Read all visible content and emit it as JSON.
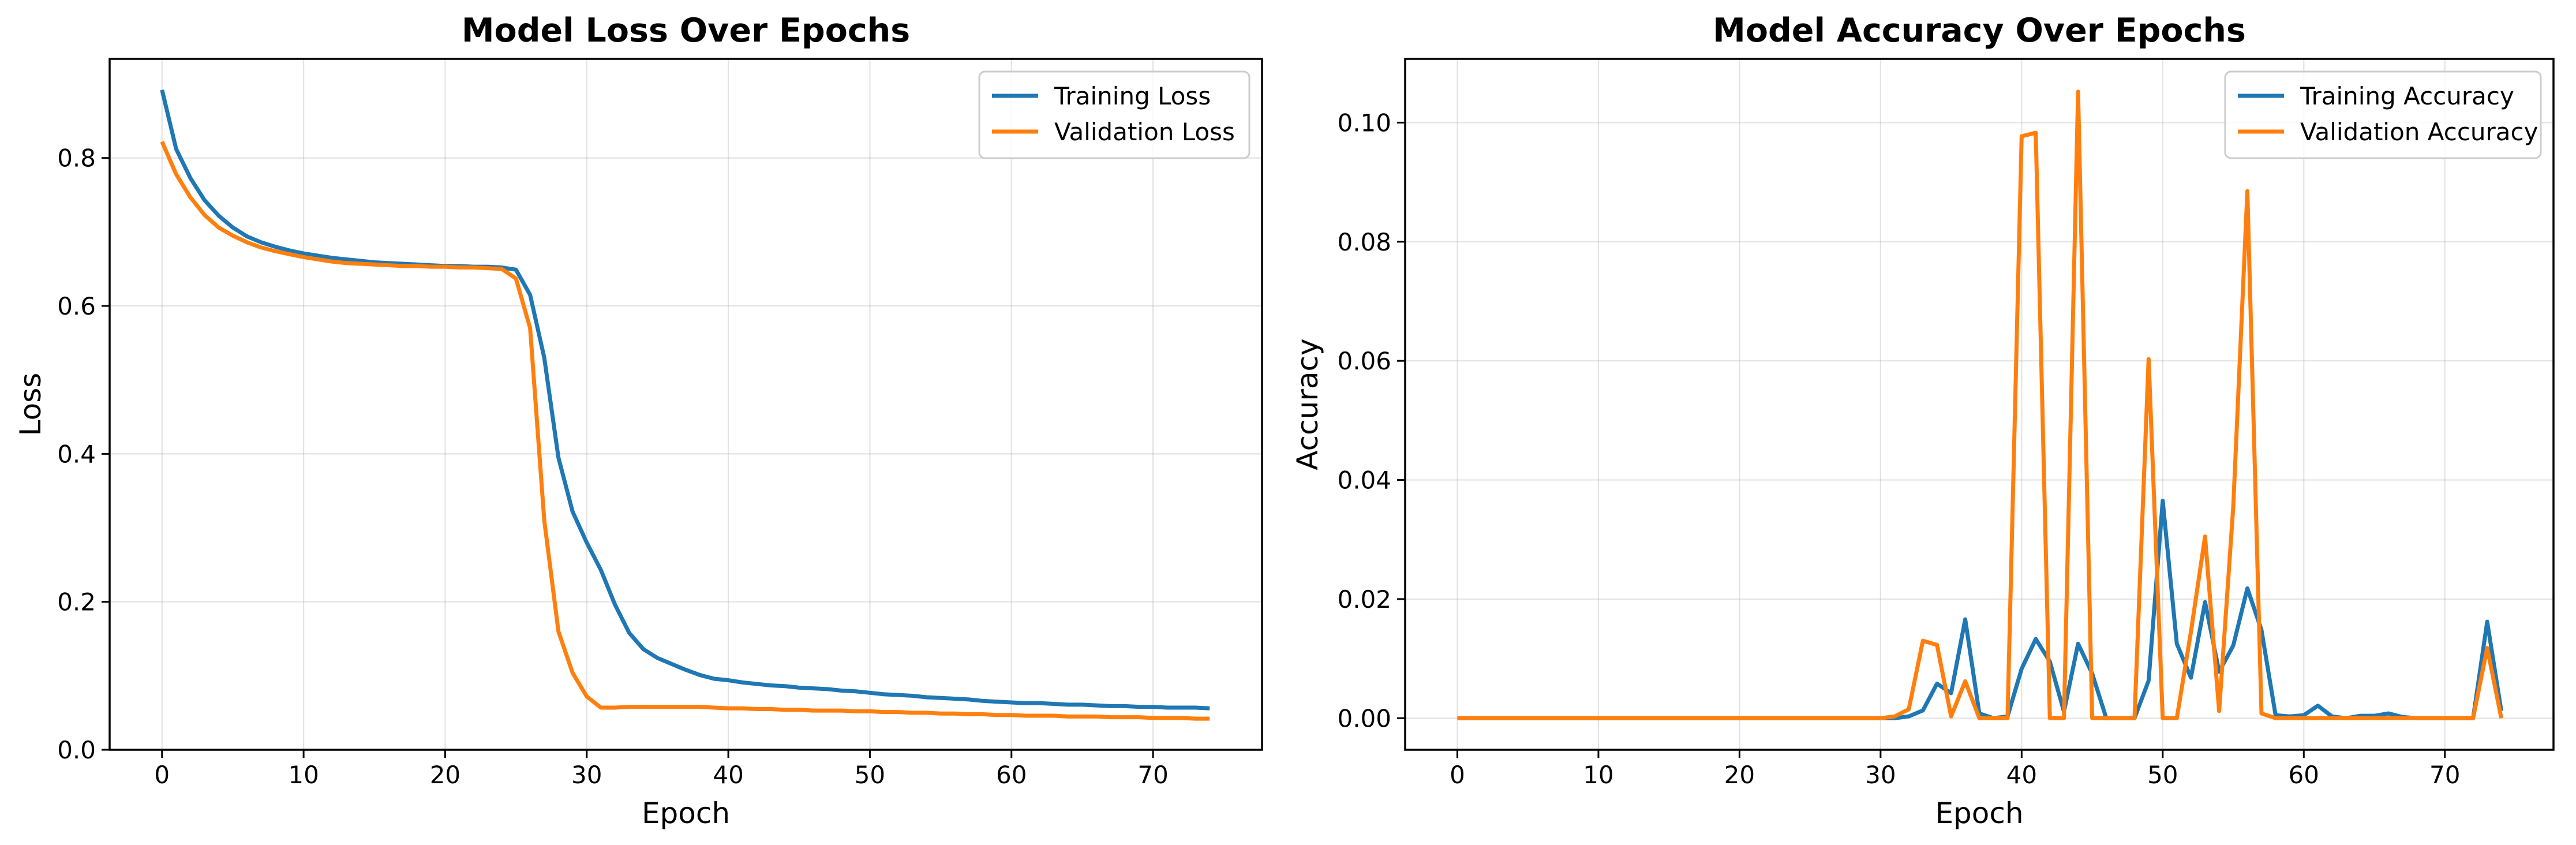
{
  "chart_data": [
    {
      "type": "line",
      "title": "Model Loss Over Epochs",
      "xlabel": "Epoch",
      "ylabel": "Loss",
      "xlim": [
        -3.7,
        77.7
      ],
      "ylim": [
        0,
        0.934
      ],
      "xticks": [
        0,
        10,
        20,
        30,
        40,
        50,
        60,
        70
      ],
      "yticks": [
        0.0,
        0.2,
        0.4,
        0.6,
        0.8
      ],
      "ytick_decimals": 1,
      "grid": true,
      "legend_position": "top-right",
      "series": [
        {
          "name": "Training Loss",
          "color": "#1f77b4",
          "x": [
            0,
            1,
            2,
            3,
            4,
            5,
            6,
            7,
            8,
            9,
            10,
            11,
            12,
            13,
            14,
            15,
            16,
            17,
            18,
            19,
            20,
            21,
            22,
            23,
            24,
            25,
            26,
            27,
            28,
            29,
            30,
            31,
            32,
            33,
            34,
            35,
            36,
            37,
            38,
            39,
            40,
            41,
            42,
            43,
            44,
            45,
            46,
            47,
            48,
            49,
            50,
            51,
            52,
            53,
            54,
            55,
            56,
            57,
            58,
            59,
            60,
            61,
            62,
            63,
            64,
            65,
            66,
            67,
            68,
            69,
            70,
            71,
            72,
            73,
            74
          ],
          "y": [
            0.892,
            0.812,
            0.773,
            0.743,
            0.722,
            0.706,
            0.694,
            0.686,
            0.68,
            0.675,
            0.671,
            0.668,
            0.665,
            0.663,
            0.661,
            0.659,
            0.658,
            0.657,
            0.656,
            0.655,
            0.654,
            0.654,
            0.653,
            0.653,
            0.652,
            0.649,
            0.615,
            0.53,
            0.395,
            0.322,
            0.28,
            0.243,
            0.196,
            0.158,
            0.136,
            0.124,
            0.116,
            0.108,
            0.101,
            0.096,
            0.094,
            0.091,
            0.089,
            0.087,
            0.086,
            0.084,
            0.083,
            0.082,
            0.08,
            0.079,
            0.077,
            0.075,
            0.074,
            0.073,
            0.071,
            0.07,
            0.069,
            0.068,
            0.066,
            0.065,
            0.064,
            0.063,
            0.063,
            0.062,
            0.061,
            0.061,
            0.06,
            0.059,
            0.059,
            0.058,
            0.058,
            0.057,
            0.057,
            0.057,
            0.056
          ]
        },
        {
          "name": "Validation Loss",
          "color": "#ff7f0e",
          "x": [
            0,
            1,
            2,
            3,
            4,
            5,
            6,
            7,
            8,
            9,
            10,
            11,
            12,
            13,
            14,
            15,
            16,
            17,
            18,
            19,
            20,
            21,
            22,
            23,
            24,
            25,
            26,
            27,
            28,
            29,
            30,
            31,
            32,
            33,
            34,
            35,
            36,
            37,
            38,
            39,
            40,
            41,
            42,
            43,
            44,
            45,
            46,
            47,
            48,
            49,
            50,
            51,
            52,
            53,
            54,
            55,
            56,
            57,
            58,
            59,
            60,
            61,
            62,
            63,
            64,
            65,
            66,
            67,
            68,
            69,
            70,
            71,
            72,
            73,
            74
          ],
          "y": [
            0.822,
            0.778,
            0.747,
            0.723,
            0.706,
            0.695,
            0.686,
            0.679,
            0.674,
            0.67,
            0.666,
            0.663,
            0.66,
            0.658,
            0.657,
            0.656,
            0.655,
            0.654,
            0.654,
            0.653,
            0.653,
            0.652,
            0.652,
            0.651,
            0.65,
            0.637,
            0.57,
            0.31,
            0.16,
            0.104,
            0.072,
            0.057,
            0.057,
            0.058,
            0.058,
            0.058,
            0.058,
            0.058,
            0.058,
            0.057,
            0.056,
            0.056,
            0.055,
            0.055,
            0.054,
            0.054,
            0.053,
            0.053,
            0.053,
            0.052,
            0.052,
            0.051,
            0.051,
            0.05,
            0.05,
            0.049,
            0.049,
            0.048,
            0.048,
            0.047,
            0.047,
            0.046,
            0.046,
            0.046,
            0.045,
            0.045,
            0.045,
            0.044,
            0.044,
            0.044,
            0.043,
            0.043,
            0.043,
            0.042,
            0.042
          ]
        }
      ]
    },
    {
      "type": "line",
      "title": "Model Accuracy Over Epochs",
      "xlabel": "Epoch",
      "ylabel": "Accuracy",
      "xlim": [
        -3.7,
        77.7
      ],
      "ylim": [
        -0.0053,
        0.1107
      ],
      "xticks": [
        0,
        10,
        20,
        30,
        40,
        50,
        60,
        70
      ],
      "yticks": [
        0.0,
        0.02,
        0.04,
        0.06,
        0.08,
        0.1
      ],
      "ytick_decimals": 2,
      "grid": true,
      "legend_position": "top-right",
      "series": [
        {
          "name": "Training Accuracy",
          "color": "#1f77b4",
          "x": [
            0,
            1,
            2,
            3,
            4,
            5,
            6,
            7,
            8,
            9,
            10,
            11,
            12,
            13,
            14,
            15,
            16,
            17,
            18,
            19,
            20,
            21,
            22,
            23,
            24,
            25,
            26,
            27,
            28,
            29,
            30,
            31,
            32,
            33,
            34,
            35,
            36,
            37,
            38,
            39,
            40,
            41,
            42,
            43,
            44,
            45,
            46,
            47,
            48,
            49,
            50,
            51,
            52,
            53,
            54,
            55,
            56,
            57,
            58,
            59,
            60,
            61,
            62,
            63,
            64,
            65,
            66,
            67,
            68,
            69,
            70,
            71,
            72,
            73,
            74
          ],
          "y": [
            0,
            0,
            0,
            0,
            0,
            0,
            0,
            0,
            0,
            0,
            0,
            0,
            0,
            0,
            0,
            0,
            0,
            0,
            0,
            0,
            0,
            0,
            0,
            0,
            0,
            0,
            0,
            0,
            0,
            0,
            0,
            0,
            0.0003,
            0.0013,
            0.0058,
            0.0042,
            0.0166,
            0.0008,
            0,
            0.0003,
            0.0083,
            0.0133,
            0.0095,
            0.0011,
            0.0125,
            0.0075,
            0,
            0,
            0,
            0.0063,
            0.0365,
            0.0125,
            0.0068,
            0.0195,
            0.0078,
            0.0122,
            0.0218,
            0.0148,
            0.0005,
            0.0003,
            0.0005,
            0.0021,
            0.0003,
            0,
            0.0004,
            0.0004,
            0.0008,
            0.0002,
            0,
            0,
            0,
            0,
            0,
            0.0162,
            0.0012
          ]
        },
        {
          "name": "Validation Accuracy",
          "color": "#ff7f0e",
          "x": [
            0,
            1,
            2,
            3,
            4,
            5,
            6,
            7,
            8,
            9,
            10,
            11,
            12,
            13,
            14,
            15,
            16,
            17,
            18,
            19,
            20,
            21,
            22,
            23,
            24,
            25,
            26,
            27,
            28,
            29,
            30,
            31,
            32,
            33,
            34,
            35,
            36,
            37,
            38,
            39,
            40,
            41,
            42,
            43,
            44,
            45,
            46,
            47,
            48,
            49,
            50,
            51,
            52,
            53,
            54,
            55,
            56,
            57,
            58,
            59,
            60,
            61,
            62,
            63,
            64,
            65,
            66,
            67,
            68,
            69,
            70,
            71,
            72,
            73,
            74
          ],
          "y": [
            0,
            0,
            0,
            0,
            0,
            0,
            0,
            0,
            0,
            0,
            0,
            0,
            0,
            0,
            0,
            0,
            0,
            0,
            0,
            0,
            0,
            0,
            0,
            0,
            0,
            0,
            0,
            0,
            0,
            0,
            0,
            0.0003,
            0.0015,
            0.013,
            0.0123,
            0.0003,
            0.0062,
            0,
            0,
            0,
            0.0977,
            0.0983,
            0,
            0,
            0.1052,
            0,
            0,
            0,
            0,
            0.0603,
            0,
            0,
            0.0145,
            0.0305,
            0.0012,
            0.0355,
            0.0885,
            0.0008,
            0,
            0,
            0,
            0,
            0,
            0,
            0,
            0,
            0,
            0,
            0,
            0,
            0,
            0,
            0,
            0.0118,
            0
          ]
        }
      ]
    }
  ]
}
